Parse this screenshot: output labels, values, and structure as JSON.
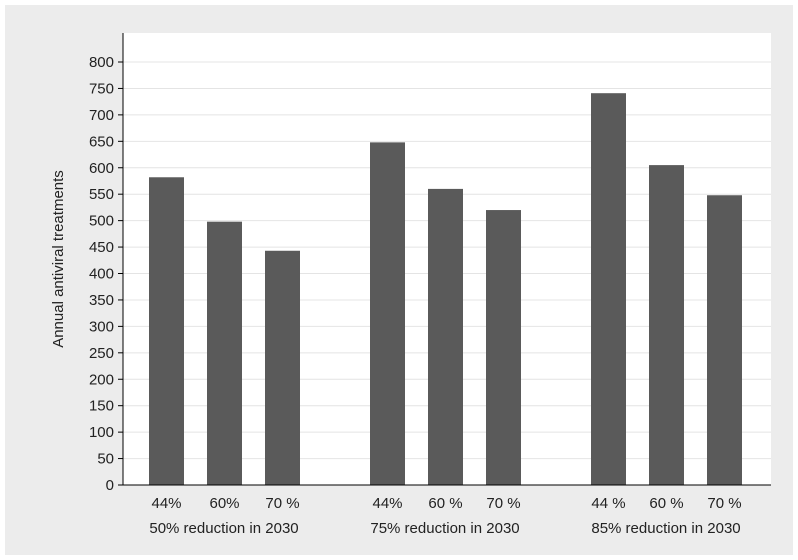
{
  "chart_data": {
    "type": "bar",
    "title": "",
    "xlabel": "",
    "ylabel": "Annual antiviral treatments",
    "ylim": [
      0,
      800
    ],
    "yticks": [
      0,
      50,
      100,
      150,
      200,
      250,
      300,
      350,
      400,
      450,
      500,
      550,
      600,
      650,
      700,
      750,
      800
    ],
    "grid": true,
    "groups": [
      {
        "label": "50% reduction in 2030",
        "categories": [
          "44%",
          "60%",
          "70 %"
        ],
        "values": [
          582,
          498,
          443
        ]
      },
      {
        "label": "75% reduction in 2030",
        "categories": [
          "44%",
          "60 %",
          "70 %"
        ],
        "values": [
          648,
          560,
          520
        ]
      },
      {
        "label": "85% reduction in 2030",
        "categories": [
          "44 %",
          "60  %",
          "70  %"
        ],
        "values": [
          741,
          605,
          548
        ]
      }
    ],
    "colors": {
      "bar": "#5a5a5a",
      "plot_background": "#ffffff",
      "grid": "#e4e4e4",
      "frame_background": "#ececec"
    }
  }
}
